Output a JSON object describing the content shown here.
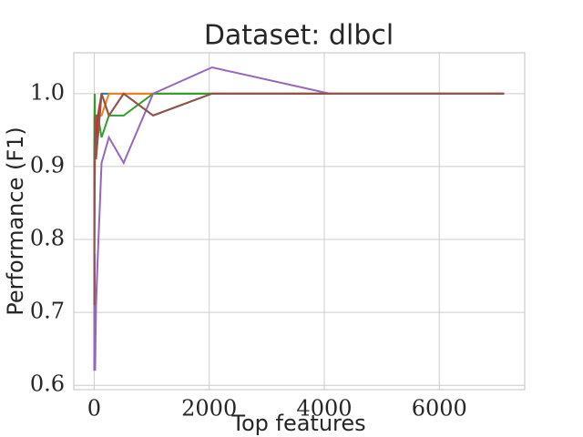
{
  "chart_data": {
    "type": "line",
    "title": "Dataset: dlbcl",
    "x_label": "Top features",
    "y_label": "Performance (F1)",
    "x": [
      1,
      2,
      4,
      8,
      16,
      32,
      64,
      128,
      256,
      512,
      1024,
      2048,
      4096,
      7129
    ],
    "series": [
      {
        "color": "#1f77b4",
        "values": [
          0.62,
          0.71,
          0.78,
          0.87,
          0.93,
          0.97,
          0.94,
          1.0,
          1.0,
          1.0,
          1.0,
          1.0,
          1.0,
          1.0
        ]
      },
      {
        "color": "#ff7f0e",
        "values": [
          0.78,
          0.87,
          0.93,
          0.97,
          0.91,
          0.97,
          0.97,
          0.97,
          1.0,
          1.0,
          1.0,
          1.0,
          1.0,
          1.0
        ]
      },
      {
        "color": "#2ca02c",
        "values": [
          0.87,
          0.93,
          0.97,
          1.0,
          0.94,
          0.97,
          0.97,
          0.94,
          0.97,
          0.97,
          1.0,
          1.0,
          1.0,
          1.0
        ]
      },
      {
        "color": "#d62728",
        "values": [
          0.71,
          0.78,
          0.87,
          0.93,
          0.91,
          0.94,
          0.97,
          1.0,
          0.97,
          1.0,
          0.97,
          1.0,
          1.0,
          1.0
        ]
      },
      {
        "color": "#9467bd",
        "values": [
          0.62,
          0.71,
          0.62,
          0.78,
          0.62,
          0.71,
          0.78,
          0.905,
          0.94,
          0.905,
          1.0,
          1.036,
          1.0,
          1.0
        ]
      },
      {
        "color": "#8c564b",
        "values": [
          0.78,
          0.71,
          0.87,
          0.93,
          0.97,
          0.91,
          0.94,
          1.0,
          0.97,
          1.0,
          0.97,
          1.0,
          1.0,
          1.0
        ]
      }
    ],
    "xlim": [
      -355,
      7485
    ],
    "ylim": [
      0.594,
      1.056
    ],
    "xticks": [
      0,
      2000,
      4000,
      6000
    ],
    "yticks": [
      0.6,
      0.7,
      0.8,
      0.9,
      {
        "value": 1,
        "label": "1.0"
      }
    ],
    "grid": true
  }
}
